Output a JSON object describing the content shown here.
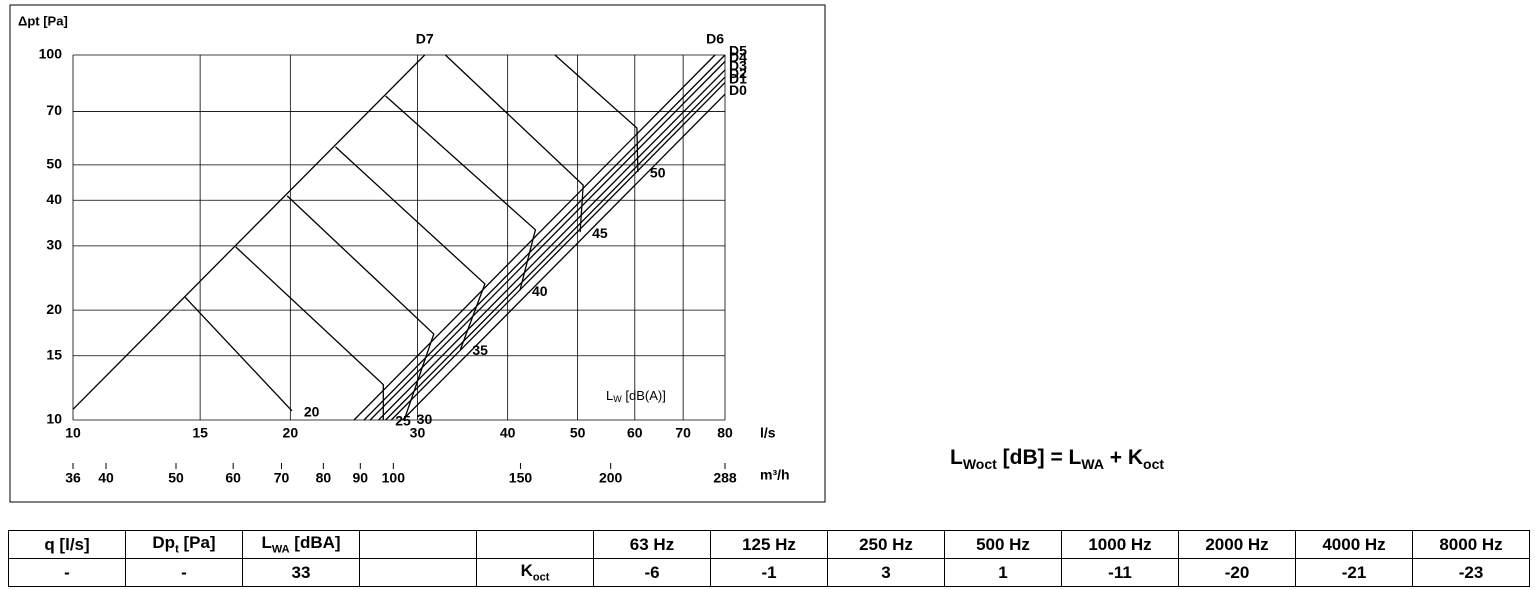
{
  "chart_data": {
    "type": "line",
    "y_label": "Δpt [Pa]",
    "x_label": "l/s",
    "x2_label": "m³/h",
    "annotation": [
      "L",
      "W",
      " [dB(A)]"
    ],
    "xscale": "log",
    "yscale": "log",
    "grid": true,
    "xlim": [
      10,
      80
    ],
    "ylim": [
      10,
      100
    ],
    "xticks": [
      10,
      15,
      20,
      30,
      40,
      50,
      60,
      70,
      80
    ],
    "yticks": [
      10,
      15,
      20,
      30,
      40,
      50,
      70,
      100
    ],
    "x2lim": [
      36,
      288
    ],
    "x2ticks": [
      36,
      40,
      50,
      60,
      70,
      80,
      90,
      100,
      150,
      200,
      288
    ],
    "series": [
      {
        "name": "D0",
        "color": "#000000",
        "x": [
          28.6,
          80
        ],
        "values": [
          10,
          78.1
        ]
      },
      {
        "name": "D1",
        "color": "#000000",
        "x": [
          27.6,
          80
        ],
        "values": [
          10,
          84
        ]
      },
      {
        "name": "D2",
        "color": "#000000",
        "x": [
          27.1,
          80
        ],
        "values": [
          10,
          87
        ]
      },
      {
        "name": "D3",
        "color": "#000000",
        "x": [
          26.5,
          80
        ],
        "values": [
          10,
          91
        ]
      },
      {
        "name": "D4",
        "color": "#000000",
        "x": [
          25.8,
          80
        ],
        "values": [
          10,
          96
        ]
      },
      {
        "name": "D5",
        "color": "#000000",
        "x": [
          25.3,
          80
        ],
        "values": [
          10,
          100
        ]
      },
      {
        "name": "D6",
        "color": "#000000",
        "x": [
          24.5,
          77.5
        ],
        "values": [
          10,
          100
        ]
      },
      {
        "name": "D7",
        "color": "#000000",
        "x": [
          10,
          30.7
        ],
        "values": [
          10.7,
          100
        ]
      }
    ],
    "contours": [
      {
        "name": "20",
        "x": [
          14.3,
          20.1
        ],
        "values": [
          21.7,
          10.6
        ]
      },
      {
        "name": "25",
        "x": [
          16.8,
          26.9,
          26.9
        ],
        "values": [
          29.8,
          12.5,
          10
        ]
      },
      {
        "name": "30",
        "x": [
          19.8,
          31.6,
          28.8
        ],
        "values": [
          41.1,
          17.2,
          10.1
        ]
      },
      {
        "name": "35",
        "x": [
          23.1,
          37.2,
          34.4
        ],
        "values": [
          56,
          23.6,
          15.6
        ]
      },
      {
        "name": "40",
        "x": [
          27.1,
          43.7,
          41.6
        ],
        "values": [
          77.2,
          33.2,
          22.7
        ]
      },
      {
        "name": "45",
        "x": [
          32.8,
          50.9,
          50.4
        ],
        "values": [
          100,
          44,
          32.7
        ]
      },
      {
        "name": "50",
        "x": [
          46.5,
          60.4,
          60.6
        ],
        "values": [
          100,
          63.1,
          47.8
        ]
      }
    ]
  },
  "formula": [
    "L",
    "Woct",
    " [dB] = L",
    "WA",
    " + K",
    "oct"
  ],
  "table": {
    "header": [
      [
        "q [l/s]"
      ],
      [
        "Dp",
        "t",
        " [Pa]"
      ],
      [
        "L",
        "WA",
        " [dBA]"
      ],
      [
        ""
      ],
      [
        ""
      ],
      [
        "63 Hz"
      ],
      [
        "125 Hz"
      ],
      [
        "250 Hz"
      ],
      [
        "500 Hz"
      ],
      [
        "1000 Hz"
      ],
      [
        "2000 Hz"
      ],
      [
        "4000 Hz"
      ],
      [
        "8000 Hz"
      ]
    ],
    "row": [
      [
        "-"
      ],
      [
        "-"
      ],
      [
        "33"
      ],
      [
        ""
      ],
      [
        "K",
        "oct"
      ],
      [
        "-6"
      ],
      [
        "-1"
      ],
      [
        "3"
      ],
      [
        "1"
      ],
      [
        "-11"
      ],
      [
        "-20"
      ],
      [
        "-21"
      ],
      [
        "-23"
      ]
    ]
  }
}
